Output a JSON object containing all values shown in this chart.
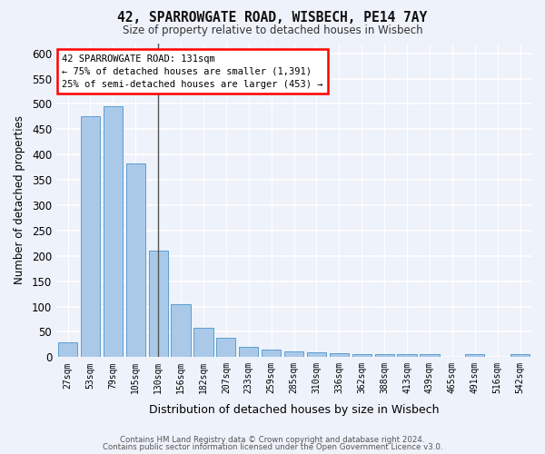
{
  "title_line1": "42, SPARROWGATE ROAD, WISBECH, PE14 7AY",
  "title_line2": "Size of property relative to detached houses in Wisbech",
  "xlabel": "Distribution of detached houses by size in Wisbech",
  "ylabel": "Number of detached properties",
  "categories": [
    "27sqm",
    "53sqm",
    "79sqm",
    "105sqm",
    "130sqm",
    "156sqm",
    "182sqm",
    "207sqm",
    "233sqm",
    "259sqm",
    "285sqm",
    "310sqm",
    "336sqm",
    "362sqm",
    "388sqm",
    "413sqm",
    "439sqm",
    "465sqm",
    "491sqm",
    "516sqm",
    "542sqm"
  ],
  "values": [
    30,
    475,
    495,
    382,
    210,
    104,
    57,
    38,
    20,
    14,
    12,
    10,
    8,
    5,
    5,
    5,
    5,
    0,
    5,
    0,
    5
  ],
  "bar_color": "#aac9e8",
  "bar_edge_color": "#5a9fd4",
  "vline_x": 4,
  "annotation_title": "42 SPARROWGATE ROAD: 131sqm",
  "annotation_line1": "← 75% of detached houses are smaller (1,391)",
  "annotation_line2": "25% of semi-detached houses are larger (453) →",
  "footer_line1": "Contains HM Land Registry data © Crown copyright and database right 2024.",
  "footer_line2": "Contains public sector information licensed under the Open Government Licence v3.0.",
  "background_color": "#eef2fa",
  "plot_bg_color": "#eef2fa",
  "ylim": [
    0,
    620
  ],
  "yticks": [
    0,
    50,
    100,
    150,
    200,
    250,
    300,
    350,
    400,
    450,
    500,
    550,
    600
  ]
}
